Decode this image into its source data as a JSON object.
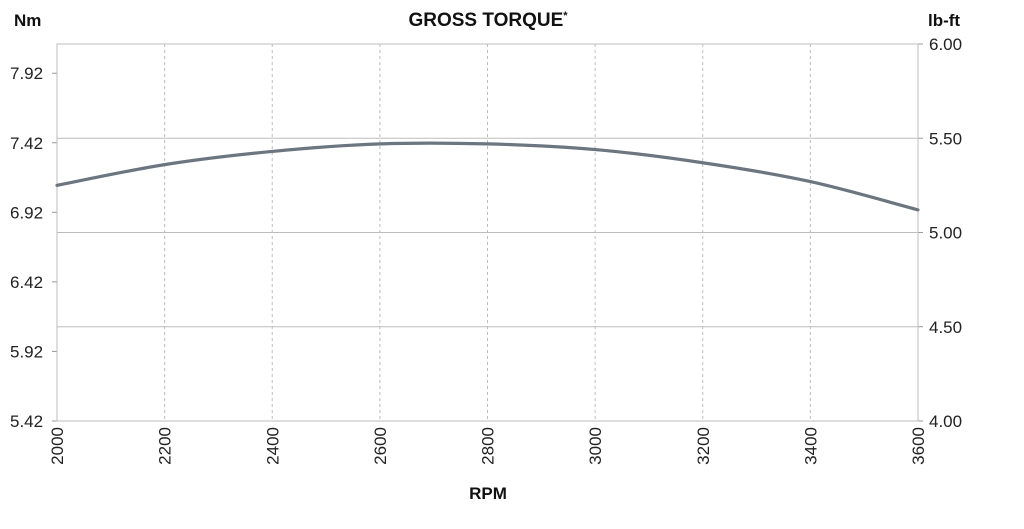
{
  "chart_data": {
    "type": "line",
    "title": "GROSS TORQUE",
    "title_mark": "*",
    "xlabel": "RPM",
    "ylabel_left": "Nm",
    "ylabel_right": "lb-ft",
    "x_ticks": [
      "2000",
      "2200",
      "2400",
      "2600",
      "2800",
      "3000",
      "3200",
      "3400",
      "3600"
    ],
    "y_left_ticks": [
      "5.42",
      "5.92",
      "6.42",
      "6.92",
      "7.42",
      "7.92"
    ],
    "y_right_ticks": [
      "4.00",
      "4.50",
      "5.00",
      "5.50",
      "6.00"
    ],
    "xlim": [
      2000,
      3600
    ],
    "ylim_right": [
      4.0,
      6.0
    ],
    "ylim_left": [
      5.42,
      8.13
    ],
    "grid": {
      "vertical": "dashed",
      "horizontal": "solid"
    },
    "line_color": "#6b7680",
    "series": [
      {
        "x": [
          2000,
          2200,
          2400,
          2600,
          2800,
          3000,
          3200,
          3400,
          3600
        ],
        "y": [
          5.25,
          5.36,
          5.43,
          5.47,
          5.47,
          5.44,
          5.37,
          5.27,
          5.12
        ]
      }
    ]
  }
}
